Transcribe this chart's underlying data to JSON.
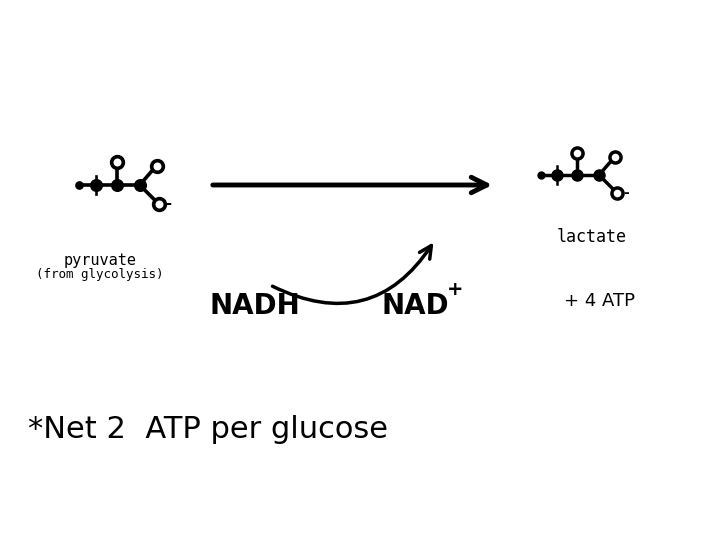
{
  "bg_color": "#ffffff",
  "text_color": "#000000",
  "title_bottom": "*Net 2  ATP per glucose",
  "title_fontsize": 22,
  "label_pyruvate": "pyruvate",
  "label_from_glycolysis": "(from glycolysis)",
  "label_lactate": "lactate",
  "label_nadh": "NADH",
  "label_nad": "NAD",
  "label_plus": "+",
  "label_atp": "+ 4 ATP",
  "molecule_color": "#000000",
  "arrow_color": "#000000",
  "figw": 7.2,
  "figh": 5.4,
  "dpi": 100
}
